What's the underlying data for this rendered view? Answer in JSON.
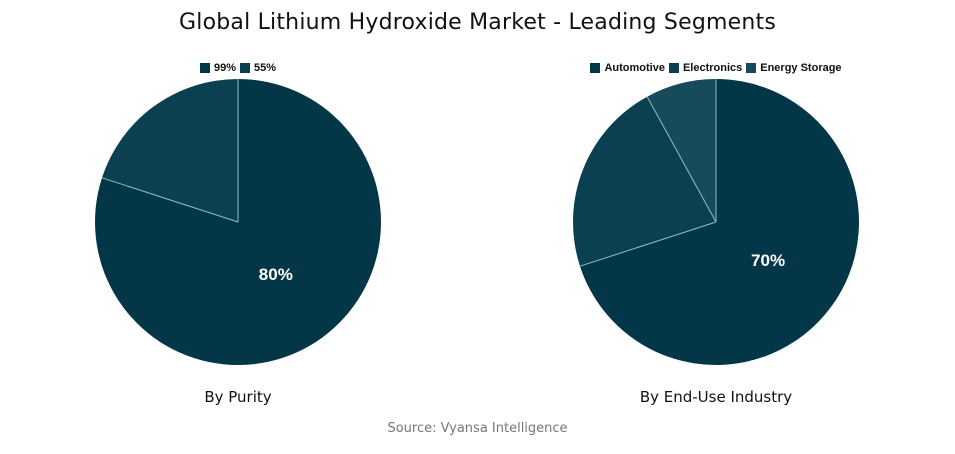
{
  "title": "Global Lithium Hydroxide Market - Leading Segments",
  "source": "Source: Vyansa Intelligence",
  "colors": {
    "primary": "#033747",
    "secondary": "#0b4050",
    "tertiary": "#174a5a",
    "separator": "#8fbfc8"
  },
  "charts": [
    {
      "subtitle": "By Purity",
      "legend": [
        {
          "label": "99%",
          "color": "#033747"
        },
        {
          "label": "55%",
          "color": "#0b4050"
        }
      ],
      "label": "80%"
    },
    {
      "subtitle": "By End-Use Industry",
      "legend": [
        {
          "label": "Automotive",
          "color": "#033747"
        },
        {
          "label": "Electronics",
          "color": "#0b4050"
        },
        {
          "label": "Energy Storage",
          "color": "#174a5a"
        }
      ],
      "label": "70%"
    }
  ],
  "chart_data": [
    {
      "type": "pie",
      "title": "By Purity",
      "categories": [
        "99%",
        "55%"
      ],
      "values": [
        80,
        20
      ],
      "legend_position": "top"
    },
    {
      "type": "pie",
      "title": "By End-Use Industry",
      "categories": [
        "Automotive",
        "Electronics",
        "Energy Storage"
      ],
      "values": [
        70,
        22,
        8
      ],
      "legend_position": "top"
    }
  ]
}
